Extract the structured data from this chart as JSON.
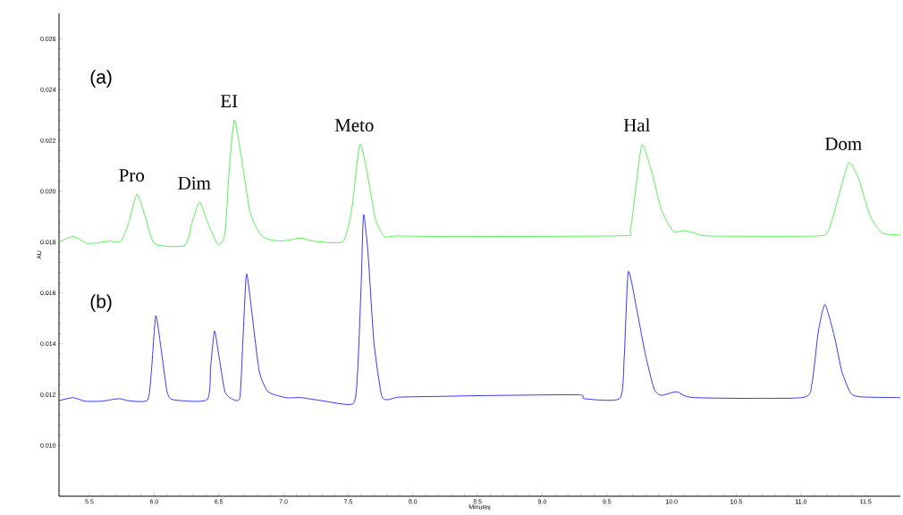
{
  "chart_data": {
    "type": "line",
    "xlabel": "Minutes",
    "ylabel": "AU",
    "marker": "none",
    "xlim": [
      5.265,
      11.768
    ],
    "ylim": [
      0.008,
      0.027
    ],
    "xticks": [
      {
        "value": 5.5,
        "label": "5.5"
      },
      {
        "value": 6.0,
        "label": "6.0"
      },
      {
        "value": 6.5,
        "label": "6.5"
      },
      {
        "value": 7.0,
        "label": "7.0"
      },
      {
        "value": 7.5,
        "label": "7.5"
      },
      {
        "value": 8.0,
        "label": "8.0"
      },
      {
        "value": 8.5,
        "label": "8.5"
      },
      {
        "value": 9.0,
        "label": "9.0"
      },
      {
        "value": 9.5,
        "label": "9.5"
      },
      {
        "value": 10.0,
        "label": "10.0"
      },
      {
        "value": 10.5,
        "label": "10.5"
      },
      {
        "value": 11.0,
        "label": "11.0"
      },
      {
        "value": 11.5,
        "label": "11.5"
      }
    ],
    "yticks": [
      {
        "value": 0.01,
        "label": "0.010"
      },
      {
        "value": 0.012,
        "label": "0.012"
      },
      {
        "value": 0.014,
        "label": "0.014"
      },
      {
        "value": 0.016,
        "label": "0.016"
      },
      {
        "value": 0.018,
        "label": "0.018"
      },
      {
        "value": 0.02,
        "label": "0.020"
      },
      {
        "value": 0.022,
        "label": "0.022"
      },
      {
        "value": 0.024,
        "label": "0.024"
      },
      {
        "value": 0.026,
        "label": "0.026"
      }
    ],
    "series": [
      {
        "color": "#40f040",
        "x": [
          5.265,
          5.374,
          5.477,
          5.569,
          5.65,
          5.742,
          5.799,
          5.868,
          5.937,
          6.006,
          6.237,
          6.295,
          6.352,
          6.421,
          6.495,
          6.548,
          6.583,
          6.621,
          6.675,
          6.744,
          6.836,
          6.974,
          7.136,
          7.228,
          7.458,
          7.527,
          7.589,
          7.642,
          7.711,
          7.78,
          7.872,
          8.218,
          8.54,
          9.623,
          9.681,
          9.727,
          9.773,
          9.853,
          9.922,
          10.014,
          10.095,
          10.176,
          10.291,
          11.12,
          11.212,
          11.293,
          11.369,
          11.443,
          11.535,
          11.627,
          11.768
        ],
        "values": [
          0.018,
          0.01822,
          0.01796,
          0.01797,
          0.01804,
          0.01804,
          0.01868,
          0.01988,
          0.01891,
          0.01793,
          0.01787,
          0.0188,
          0.01958,
          0.01868,
          0.0179,
          0.01834,
          0.02099,
          0.02281,
          0.02133,
          0.01914,
          0.01822,
          0.01804,
          0.01816,
          0.01804,
          0.01802,
          0.01926,
          0.02185,
          0.02087,
          0.01891,
          0.01822,
          0.01824,
          0.01822,
          0.01822,
          0.01825,
          0.01845,
          0.02029,
          0.02185,
          0.02064,
          0.01926,
          0.01842,
          0.01845,
          0.01836,
          0.01824,
          0.01824,
          0.01845,
          0.01983,
          0.02112,
          0.02053,
          0.01903,
          0.01836,
          0.01828
        ]
      },
      {
        "color": "#2020f0",
        "x": [
          5.265,
          5.374,
          5.465,
          5.592,
          5.73,
          5.799,
          5.949,
          5.979,
          6.013,
          6.053,
          6.099,
          6.145,
          6.41,
          6.438,
          6.467,
          6.502,
          6.548,
          6.606,
          6.663,
          6.686,
          6.714,
          6.756,
          6.813,
          6.882,
          7.02,
          7.136,
          7.297,
          7.538,
          7.573,
          7.601,
          7.619,
          7.654,
          7.699,
          7.757,
          7.803,
          7.896,
          8.218,
          8.54,
          9.278,
          9.323,
          9.6,
          9.634,
          9.665,
          9.727,
          9.796,
          9.865,
          9.922,
          10.038,
          10.176,
          11.005,
          11.085,
          11.132,
          11.185,
          11.258,
          11.316,
          11.385,
          11.465,
          11.768
        ],
        "values": [
          0.01176,
          0.01188,
          0.01174,
          0.01174,
          0.01184,
          0.01176,
          0.01178,
          0.01291,
          0.0151,
          0.01384,
          0.01216,
          0.0118,
          0.0118,
          0.01315,
          0.0145,
          0.01349,
          0.01211,
          0.01182,
          0.01188,
          0.01407,
          0.01674,
          0.01522,
          0.01291,
          0.01211,
          0.01188,
          0.01188,
          0.01176,
          0.01164,
          0.01291,
          0.01637,
          0.01908,
          0.01753,
          0.01407,
          0.01199,
          0.0118,
          0.0119,
          0.01193,
          0.01196,
          0.01199,
          0.01184,
          0.01185,
          0.01349,
          0.01683,
          0.01545,
          0.01361,
          0.01222,
          0.01197,
          0.01211,
          0.01188,
          0.01188,
          0.01245,
          0.01441,
          0.01554,
          0.0143,
          0.01291,
          0.01205,
          0.01191,
          0.01188
        ]
      }
    ],
    "annotations": [
      "(a)",
      "(b)",
      {
        "text": "Pro",
        "x": 5.868,
        "y": 0.01988
      },
      {
        "text": "Dim",
        "x": 6.352,
        "y": 0.01958
      },
      {
        "text": "EI",
        "x": 6.621,
        "y": 0.02281
      },
      {
        "text": "Meto",
        "x": 7.589,
        "y": 0.02185
      },
      {
        "text": "Hal",
        "x": 9.773,
        "y": 0.02185
      },
      {
        "text": "Dom",
        "x": 11.369,
        "y": 0.02112
      }
    ]
  }
}
